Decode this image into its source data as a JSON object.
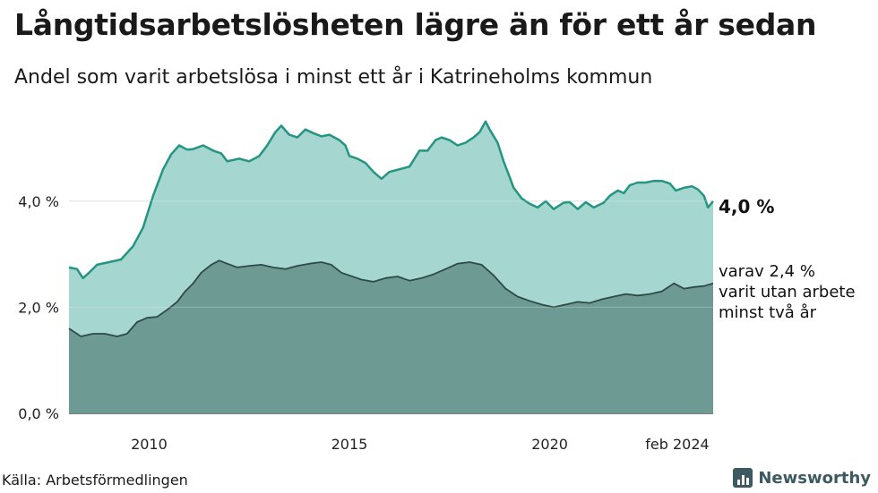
{
  "title": "Långtidsarbetslösheten lägre än för ett år sedan",
  "subtitle": "Andel som varit arbetslösa i minst ett år i Katrineholms kommun",
  "source": "Källa: Arbetsförmedlingen",
  "brand": "Newsworthy",
  "chart_data": {
    "type": "area",
    "x_unit": "decimal year",
    "x_range": [
      2008.0,
      2024.08
    ],
    "ylim": [
      0,
      5.8
    ],
    "y_ticks": [
      {
        "value": 0,
        "label": "0,0 %"
      },
      {
        "value": 2,
        "label": "2,0 %"
      },
      {
        "value": 4,
        "label": "4,0 %"
      }
    ],
    "x_ticks": [
      {
        "value": 2010,
        "label": "2010"
      },
      {
        "value": 2015,
        "label": "2015"
      },
      {
        "value": 2020,
        "label": "2020"
      },
      {
        "value": 2024.08,
        "label": "feb 2024"
      }
    ],
    "grid": "horizontal",
    "colors": {
      "total_fill": "#a6d6d0",
      "total_line": "#239582",
      "sub_fill": "#6d9b93",
      "sub_line": "#2f4a45",
      "grid": "#d9d9d9"
    },
    "series": [
      {
        "name": "total",
        "points": [
          [
            2008.0,
            2.75
          ],
          [
            2008.2,
            2.72
          ],
          [
            2008.35,
            2.55
          ],
          [
            2008.5,
            2.65
          ],
          [
            2008.7,
            2.8
          ],
          [
            2009.0,
            2.85
          ],
          [
            2009.3,
            2.9
          ],
          [
            2009.6,
            3.15
          ],
          [
            2009.85,
            3.5
          ],
          [
            2010.1,
            4.1
          ],
          [
            2010.35,
            4.6
          ],
          [
            2010.55,
            4.88
          ],
          [
            2010.75,
            5.05
          ],
          [
            2010.95,
            4.97
          ],
          [
            2011.1,
            4.98
          ],
          [
            2011.35,
            5.05
          ],
          [
            2011.6,
            4.95
          ],
          [
            2011.8,
            4.9
          ],
          [
            2011.95,
            4.75
          ],
          [
            2012.25,
            4.8
          ],
          [
            2012.5,
            4.75
          ],
          [
            2012.75,
            4.85
          ],
          [
            2012.95,
            5.05
          ],
          [
            2013.15,
            5.3
          ],
          [
            2013.3,
            5.42
          ],
          [
            2013.5,
            5.25
          ],
          [
            2013.7,
            5.2
          ],
          [
            2013.9,
            5.35
          ],
          [
            2014.1,
            5.28
          ],
          [
            2014.3,
            5.22
          ],
          [
            2014.5,
            5.25
          ],
          [
            2014.75,
            5.15
          ],
          [
            2014.9,
            5.05
          ],
          [
            2015.0,
            4.85
          ],
          [
            2015.2,
            4.8
          ],
          [
            2015.4,
            4.72
          ],
          [
            2015.6,
            4.55
          ],
          [
            2015.8,
            4.42
          ],
          [
            2016.0,
            4.55
          ],
          [
            2016.25,
            4.6
          ],
          [
            2016.5,
            4.65
          ],
          [
            2016.75,
            4.95
          ],
          [
            2016.95,
            4.95
          ],
          [
            2017.15,
            5.15
          ],
          [
            2017.3,
            5.2
          ],
          [
            2017.5,
            5.15
          ],
          [
            2017.7,
            5.05
          ],
          [
            2017.9,
            5.1
          ],
          [
            2018.1,
            5.2
          ],
          [
            2018.25,
            5.3
          ],
          [
            2018.4,
            5.5
          ],
          [
            2018.5,
            5.35
          ],
          [
            2018.7,
            5.1
          ],
          [
            2018.85,
            4.75
          ],
          [
            2019.0,
            4.45
          ],
          [
            2019.1,
            4.25
          ],
          [
            2019.3,
            4.05
          ],
          [
            2019.5,
            3.95
          ],
          [
            2019.7,
            3.88
          ],
          [
            2019.9,
            4.0
          ],
          [
            2020.1,
            3.85
          ],
          [
            2020.35,
            3.97
          ],
          [
            2020.5,
            3.98
          ],
          [
            2020.7,
            3.85
          ],
          [
            2020.9,
            3.98
          ],
          [
            2021.1,
            3.88
          ],
          [
            2021.35,
            3.97
          ],
          [
            2021.5,
            4.1
          ],
          [
            2021.7,
            4.2
          ],
          [
            2021.85,
            4.15
          ],
          [
            2022.0,
            4.3
          ],
          [
            2022.2,
            4.35
          ],
          [
            2022.4,
            4.35
          ],
          [
            2022.6,
            4.38
          ],
          [
            2022.8,
            4.38
          ],
          [
            2023.0,
            4.33
          ],
          [
            2023.15,
            4.2
          ],
          [
            2023.35,
            4.25
          ],
          [
            2023.55,
            4.28
          ],
          [
            2023.7,
            4.22
          ],
          [
            2023.85,
            4.1
          ],
          [
            2023.95,
            3.88
          ],
          [
            2024.08,
            4.0
          ]
        ]
      },
      {
        "name": "sub",
        "points": [
          [
            2008.0,
            1.6
          ],
          [
            2008.3,
            1.45
          ],
          [
            2008.6,
            1.5
          ],
          [
            2008.9,
            1.5
          ],
          [
            2009.2,
            1.45
          ],
          [
            2009.45,
            1.5
          ],
          [
            2009.7,
            1.72
          ],
          [
            2009.95,
            1.8
          ],
          [
            2010.2,
            1.82
          ],
          [
            2010.45,
            1.95
          ],
          [
            2010.7,
            2.1
          ],
          [
            2010.9,
            2.3
          ],
          [
            2011.1,
            2.45
          ],
          [
            2011.3,
            2.65
          ],
          [
            2011.55,
            2.8
          ],
          [
            2011.75,
            2.88
          ],
          [
            2011.95,
            2.82
          ],
          [
            2012.2,
            2.75
          ],
          [
            2012.5,
            2.78
          ],
          [
            2012.8,
            2.8
          ],
          [
            2013.1,
            2.75
          ],
          [
            2013.4,
            2.72
          ],
          [
            2013.7,
            2.78
          ],
          [
            2014.0,
            2.82
          ],
          [
            2014.3,
            2.85
          ],
          [
            2014.55,
            2.8
          ],
          [
            2014.8,
            2.65
          ],
          [
            2015.0,
            2.6
          ],
          [
            2015.3,
            2.52
          ],
          [
            2015.6,
            2.48
          ],
          [
            2015.9,
            2.55
          ],
          [
            2016.2,
            2.58
          ],
          [
            2016.5,
            2.5
          ],
          [
            2016.8,
            2.55
          ],
          [
            2017.1,
            2.62
          ],
          [
            2017.4,
            2.72
          ],
          [
            2017.7,
            2.82
          ],
          [
            2018.0,
            2.85
          ],
          [
            2018.3,
            2.8
          ],
          [
            2018.6,
            2.6
          ],
          [
            2018.9,
            2.35
          ],
          [
            2019.2,
            2.2
          ],
          [
            2019.5,
            2.12
          ],
          [
            2019.8,
            2.05
          ],
          [
            2020.1,
            2.0
          ],
          [
            2020.4,
            2.05
          ],
          [
            2020.7,
            2.1
          ],
          [
            2021.0,
            2.08
          ],
          [
            2021.3,
            2.15
          ],
          [
            2021.6,
            2.2
          ],
          [
            2021.9,
            2.25
          ],
          [
            2022.2,
            2.22
          ],
          [
            2022.5,
            2.25
          ],
          [
            2022.8,
            2.3
          ],
          [
            2023.1,
            2.45
          ],
          [
            2023.35,
            2.35
          ],
          [
            2023.6,
            2.38
          ],
          [
            2023.85,
            2.4
          ],
          [
            2024.08,
            2.45
          ]
        ]
      }
    ],
    "annotations": {
      "total_label": "4,0 %",
      "sub_label_lines": [
        "varav 2,4 %",
        "varit utan arbete",
        "minst två år"
      ]
    }
  }
}
